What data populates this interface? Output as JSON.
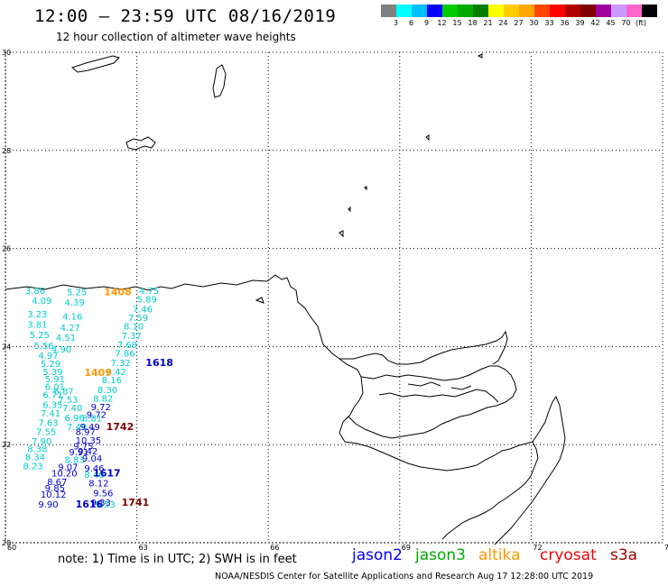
{
  "header": {
    "title": "12:00 — 23:59 UTC 08/16/2019",
    "subtitle": "12 hour collection of altimeter wave heights"
  },
  "colorbar": {
    "swatches": [
      "#808080",
      "#00ffff",
      "#00bfff",
      "#0000ff",
      "#00cc00",
      "#00aa00",
      "#008000",
      "#ffff00",
      "#ffcc00",
      "#ffa500",
      "#ff4500",
      "#ff0000",
      "#b00000",
      "#800000",
      "#a000a0",
      "#cc99ff",
      "#ff66cc",
      "#000000"
    ],
    "labels": [
      "3",
      "6",
      "9",
      "12",
      "15",
      "18",
      "21",
      "24",
      "27",
      "30",
      "33",
      "36",
      "39",
      "42",
      "45",
      "70"
    ],
    "unit": "(ft)"
  },
  "map": {
    "lon_ticks": [
      "60",
      "63",
      "66",
      "69",
      "72",
      "75"
    ],
    "lat_ticks": [
      "30",
      "28",
      "26",
      "24",
      "22",
      "20"
    ],
    "lon_range": [
      60,
      75
    ],
    "lat_range": [
      20,
      30
    ],
    "grid": "dotted",
    "swh_points": [
      {
        "text": "3.86",
        "lon": 60.45,
        "lat": 25.07,
        "color": "#00cccc"
      },
      {
        "text": "5.25",
        "lon": 61.4,
        "lat": 25.05,
        "color": "#00cccc"
      },
      {
        "text": "4.75",
        "lon": 63.05,
        "lat": 25.07,
        "color": "#00cccc"
      },
      {
        "text": "4.09",
        "lon": 60.6,
        "lat": 24.87,
        "color": "#00cccc"
      },
      {
        "text": "4.39",
        "lon": 61.35,
        "lat": 24.83,
        "color": "#00cccc"
      },
      {
        "text": "5.89",
        "lon": 63.0,
        "lat": 24.9,
        "color": "#00cccc"
      },
      {
        "text": "3.23",
        "lon": 60.5,
        "lat": 24.6,
        "color": "#00cccc"
      },
      {
        "text": "4.16",
        "lon": 61.3,
        "lat": 24.55,
        "color": "#00cccc"
      },
      {
        "text": "7.46",
        "lon": 62.9,
        "lat": 24.7,
        "color": "#00cccc"
      },
      {
        "text": "7.59",
        "lon": 62.8,
        "lat": 24.52,
        "color": "#00cccc"
      },
      {
        "text": "3.81",
        "lon": 60.5,
        "lat": 24.38,
        "color": "#00cccc"
      },
      {
        "text": "4.27",
        "lon": 61.25,
        "lat": 24.32,
        "color": "#00cccc"
      },
      {
        "text": "8.10",
        "lon": 62.7,
        "lat": 24.35,
        "color": "#00cccc"
      },
      {
        "text": "5.25",
        "lon": 60.55,
        "lat": 24.17,
        "color": "#00cccc"
      },
      {
        "text": "4.51",
        "lon": 61.15,
        "lat": 24.12,
        "color": "#00cccc"
      },
      {
        "text": "7.37",
        "lon": 62.65,
        "lat": 24.15,
        "color": "#00cccc"
      },
      {
        "text": "5.56",
        "lon": 60.65,
        "lat": 23.95,
        "color": "#00cccc"
      },
      {
        "text": "4.90",
        "lon": 61.05,
        "lat": 23.88,
        "color": "#00cccc"
      },
      {
        "text": "7.68",
        "lon": 62.55,
        "lat": 23.97,
        "color": "#00cccc"
      },
      {
        "text": "4.97",
        "lon": 60.75,
        "lat": 23.75,
        "color": "#00cccc"
      },
      {
        "text": "7.86",
        "lon": 62.5,
        "lat": 23.8,
        "color": "#00cccc"
      },
      {
        "text": "5.29",
        "lon": 60.8,
        "lat": 23.58,
        "color": "#00cccc"
      },
      {
        "text": "7.32",
        "lon": 62.4,
        "lat": 23.6,
        "color": "#00cccc"
      },
      {
        "text": "5.39",
        "lon": 60.85,
        "lat": 23.42,
        "color": "#00cccc"
      },
      {
        "text": "8.42",
        "lon": 62.3,
        "lat": 23.42,
        "color": "#00cccc"
      },
      {
        "text": "5.91",
        "lon": 60.9,
        "lat": 23.27,
        "color": "#00cccc"
      },
      {
        "text": "8.16",
        "lon": 62.2,
        "lat": 23.25,
        "color": "#00cccc"
      },
      {
        "text": "6.01",
        "lon": 60.9,
        "lat": 23.12,
        "color": "#00cccc"
      },
      {
        "text": "6.87",
        "lon": 61.1,
        "lat": 23.02,
        "color": "#00cccc"
      },
      {
        "text": "8.30",
        "lon": 62.1,
        "lat": 23.05,
        "color": "#00cccc"
      },
      {
        "text": "6.71",
        "lon": 60.85,
        "lat": 22.95,
        "color": "#00cccc"
      },
      {
        "text": "8.82",
        "lon": 62.0,
        "lat": 22.88,
        "color": "#00cccc"
      },
      {
        "text": "7.53",
        "lon": 61.2,
        "lat": 22.85,
        "color": "#00cccc"
      },
      {
        "text": "6.35",
        "lon": 60.85,
        "lat": 22.75,
        "color": "#00cccc"
      },
      {
        "text": "9.72",
        "lon": 61.95,
        "lat": 22.7,
        "color": "#0000cc"
      },
      {
        "text": "7.40",
        "lon": 61.3,
        "lat": 22.68,
        "color": "#00cccc"
      },
      {
        "text": "9.72",
        "lon": 61.85,
        "lat": 22.55,
        "color": "#0000cc"
      },
      {
        "text": "7.41",
        "lon": 60.8,
        "lat": 22.57,
        "color": "#00cccc"
      },
      {
        "text": "6.96",
        "lon": 61.35,
        "lat": 22.48,
        "color": "#00cccc"
      },
      {
        "text": "8.81",
        "lon": 61.75,
        "lat": 22.47,
        "color": "#00cccc"
      },
      {
        "text": "7.63",
        "lon": 60.75,
        "lat": 22.38,
        "color": "#00cccc"
      },
      {
        "text": "7.49",
        "lon": 61.4,
        "lat": 22.3,
        "color": "#00cccc"
      },
      {
        "text": "9.49",
        "lon": 61.7,
        "lat": 22.3,
        "color": "#0000cc"
      },
      {
        "text": "7.55",
        "lon": 60.7,
        "lat": 22.2,
        "color": "#00cccc"
      },
      {
        "text": "8.97",
        "lon": 61.6,
        "lat": 22.2,
        "color": "#0000cc"
      },
      {
        "text": "7.90",
        "lon": 60.6,
        "lat": 22.0,
        "color": "#00cccc"
      },
      {
        "text": "10.35",
        "lon": 61.6,
        "lat": 22.02,
        "color": "#0000cc"
      },
      {
        "text": "8.38",
        "lon": 60.5,
        "lat": 21.85,
        "color": "#00cccc"
      },
      {
        "text": "9.75",
        "lon": 61.55,
        "lat": 21.9,
        "color": "#0000cc"
      },
      {
        "text": "9.91",
        "lon": 61.45,
        "lat": 21.78,
        "color": "#0000cc"
      },
      {
        "text": "9.42",
        "lon": 61.65,
        "lat": 21.8,
        "color": "#0000cc"
      },
      {
        "text": "8.34",
        "lon": 60.45,
        "lat": 21.68,
        "color": "#00cccc"
      },
      {
        "text": "8.83",
        "lon": 61.35,
        "lat": 21.63,
        "color": "#00cccc"
      },
      {
        "text": "9.04",
        "lon": 61.75,
        "lat": 21.65,
        "color": "#0000cc"
      },
      {
        "text": "8.23",
        "lon": 60.4,
        "lat": 21.5,
        "color": "#00cccc"
      },
      {
        "text": "9.07",
        "lon": 61.2,
        "lat": 21.48,
        "color": "#0000cc"
      },
      {
        "text": "9.46",
        "lon": 61.8,
        "lat": 21.45,
        "color": "#0000cc"
      },
      {
        "text": "10.20",
        "lon": 61.05,
        "lat": 21.35,
        "color": "#0000cc"
      },
      {
        "text": "8.40",
        "lon": 61.8,
        "lat": 21.32,
        "color": "#00cccc"
      },
      {
        "text": "8.67",
        "lon": 60.95,
        "lat": 21.18,
        "color": "#0000cc"
      },
      {
        "text": "8.12",
        "lon": 61.9,
        "lat": 21.15,
        "color": "#0000cc"
      },
      {
        "text": "9.85",
        "lon": 60.9,
        "lat": 21.05,
        "color": "#0000cc"
      },
      {
        "text": "9.56",
        "lon": 62.0,
        "lat": 20.95,
        "color": "#0000cc"
      },
      {
        "text": "10.12",
        "lon": 60.8,
        "lat": 20.92,
        "color": "#0000cc"
      },
      {
        "text": "9.90",
        "lon": 60.75,
        "lat": 20.72,
        "color": "#0000cc"
      },
      {
        "text": "9.33",
        "lon": 61.95,
        "lat": 20.75,
        "color": "#0000cc"
      },
      {
        "text": "9.53",
        "lon": 62.05,
        "lat": 20.72,
        "color": "#00cccc"
      }
    ],
    "pass_times": [
      {
        "text": "1408",
        "lon": 62.25,
        "lat": 25.05,
        "color": "#ff9900"
      },
      {
        "text": "1618",
        "lon": 63.2,
        "lat": 23.6,
        "color": "#0000cc"
      },
      {
        "text": "1409",
        "lon": 61.8,
        "lat": 23.4,
        "color": "#ff9900"
      },
      {
        "text": "1742",
        "lon": 62.3,
        "lat": 22.3,
        "color": "#800000"
      },
      {
        "text": "1617",
        "lon": 62.0,
        "lat": 21.35,
        "color": "#0000cc"
      },
      {
        "text": "1616",
        "lon": 61.6,
        "lat": 20.72,
        "color": "#0000cc"
      },
      {
        "text": "1741",
        "lon": 62.65,
        "lat": 20.75,
        "color": "#800000"
      }
    ]
  },
  "footer": {
    "note": "note: 1) Time is in UTC; 2) SWH is in feet",
    "satellites": [
      {
        "name": "jason2",
        "color": "#0000ff"
      },
      {
        "name": "jason3",
        "color": "#00aa00"
      },
      {
        "name": "altika",
        "color": "#ff9900"
      },
      {
        "name": "cryosat",
        "color": "#ee0000"
      },
      {
        "name": "s3a",
        "color": "#990000"
      }
    ],
    "credit": "NOAA/NESDIS Center for Satellite Applications and Research    Aug 17 12:28:00 UTC 2019"
  }
}
